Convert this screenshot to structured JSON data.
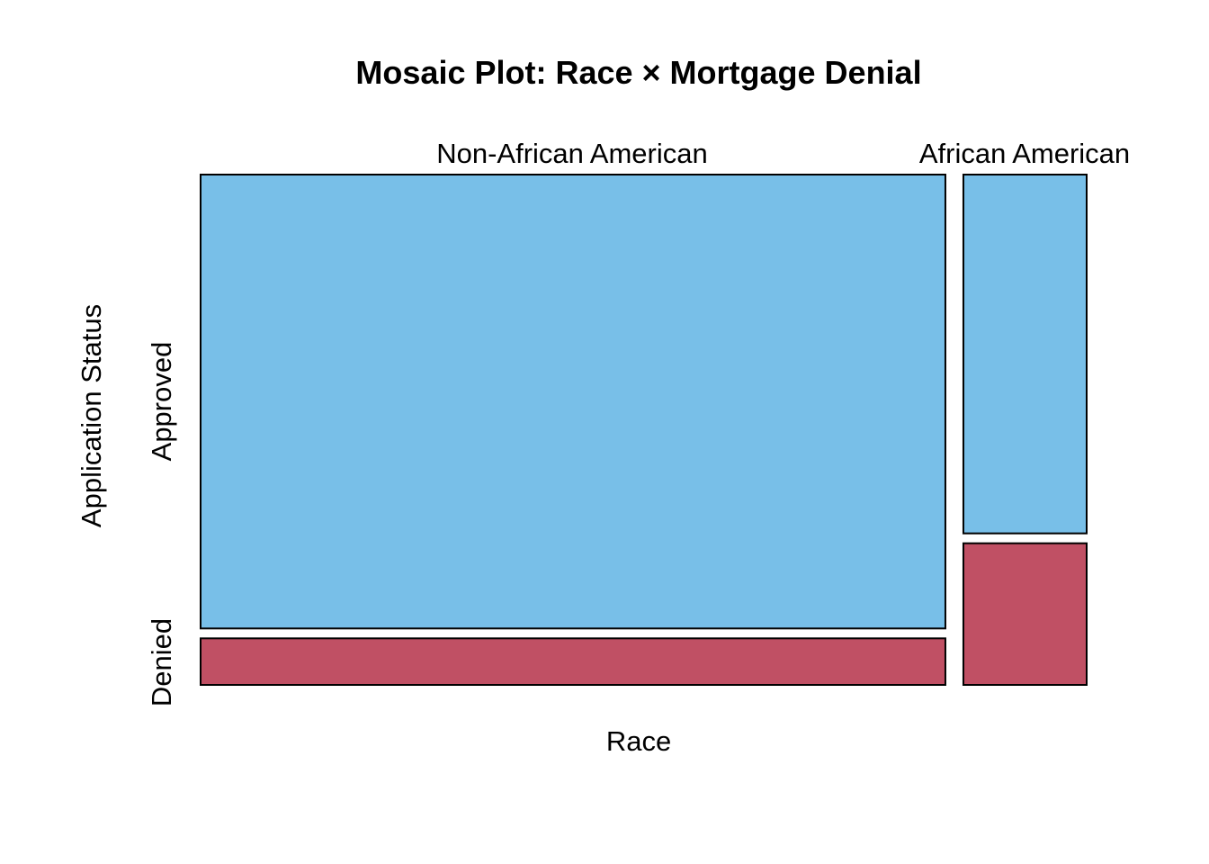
{
  "chart_data": {
    "type": "mosaic",
    "title": "Mosaic Plot: Race × Mortgage Denial",
    "xlabel": "Race",
    "ylabel": "Application Status",
    "x_categories": [
      "Non-African American",
      "African American"
    ],
    "y_categories": [
      "Approved",
      "Denied"
    ],
    "column_proportions": [
      0.858,
      0.142
    ],
    "denied_rate_within_column": [
      0.093,
      0.283
    ],
    "approved_rate_within_column": [
      0.907,
      0.717
    ],
    "colors": {
      "Approved": "#78BFE8",
      "Denied": "#C05064"
    },
    "legend": "none",
    "grid": false
  }
}
